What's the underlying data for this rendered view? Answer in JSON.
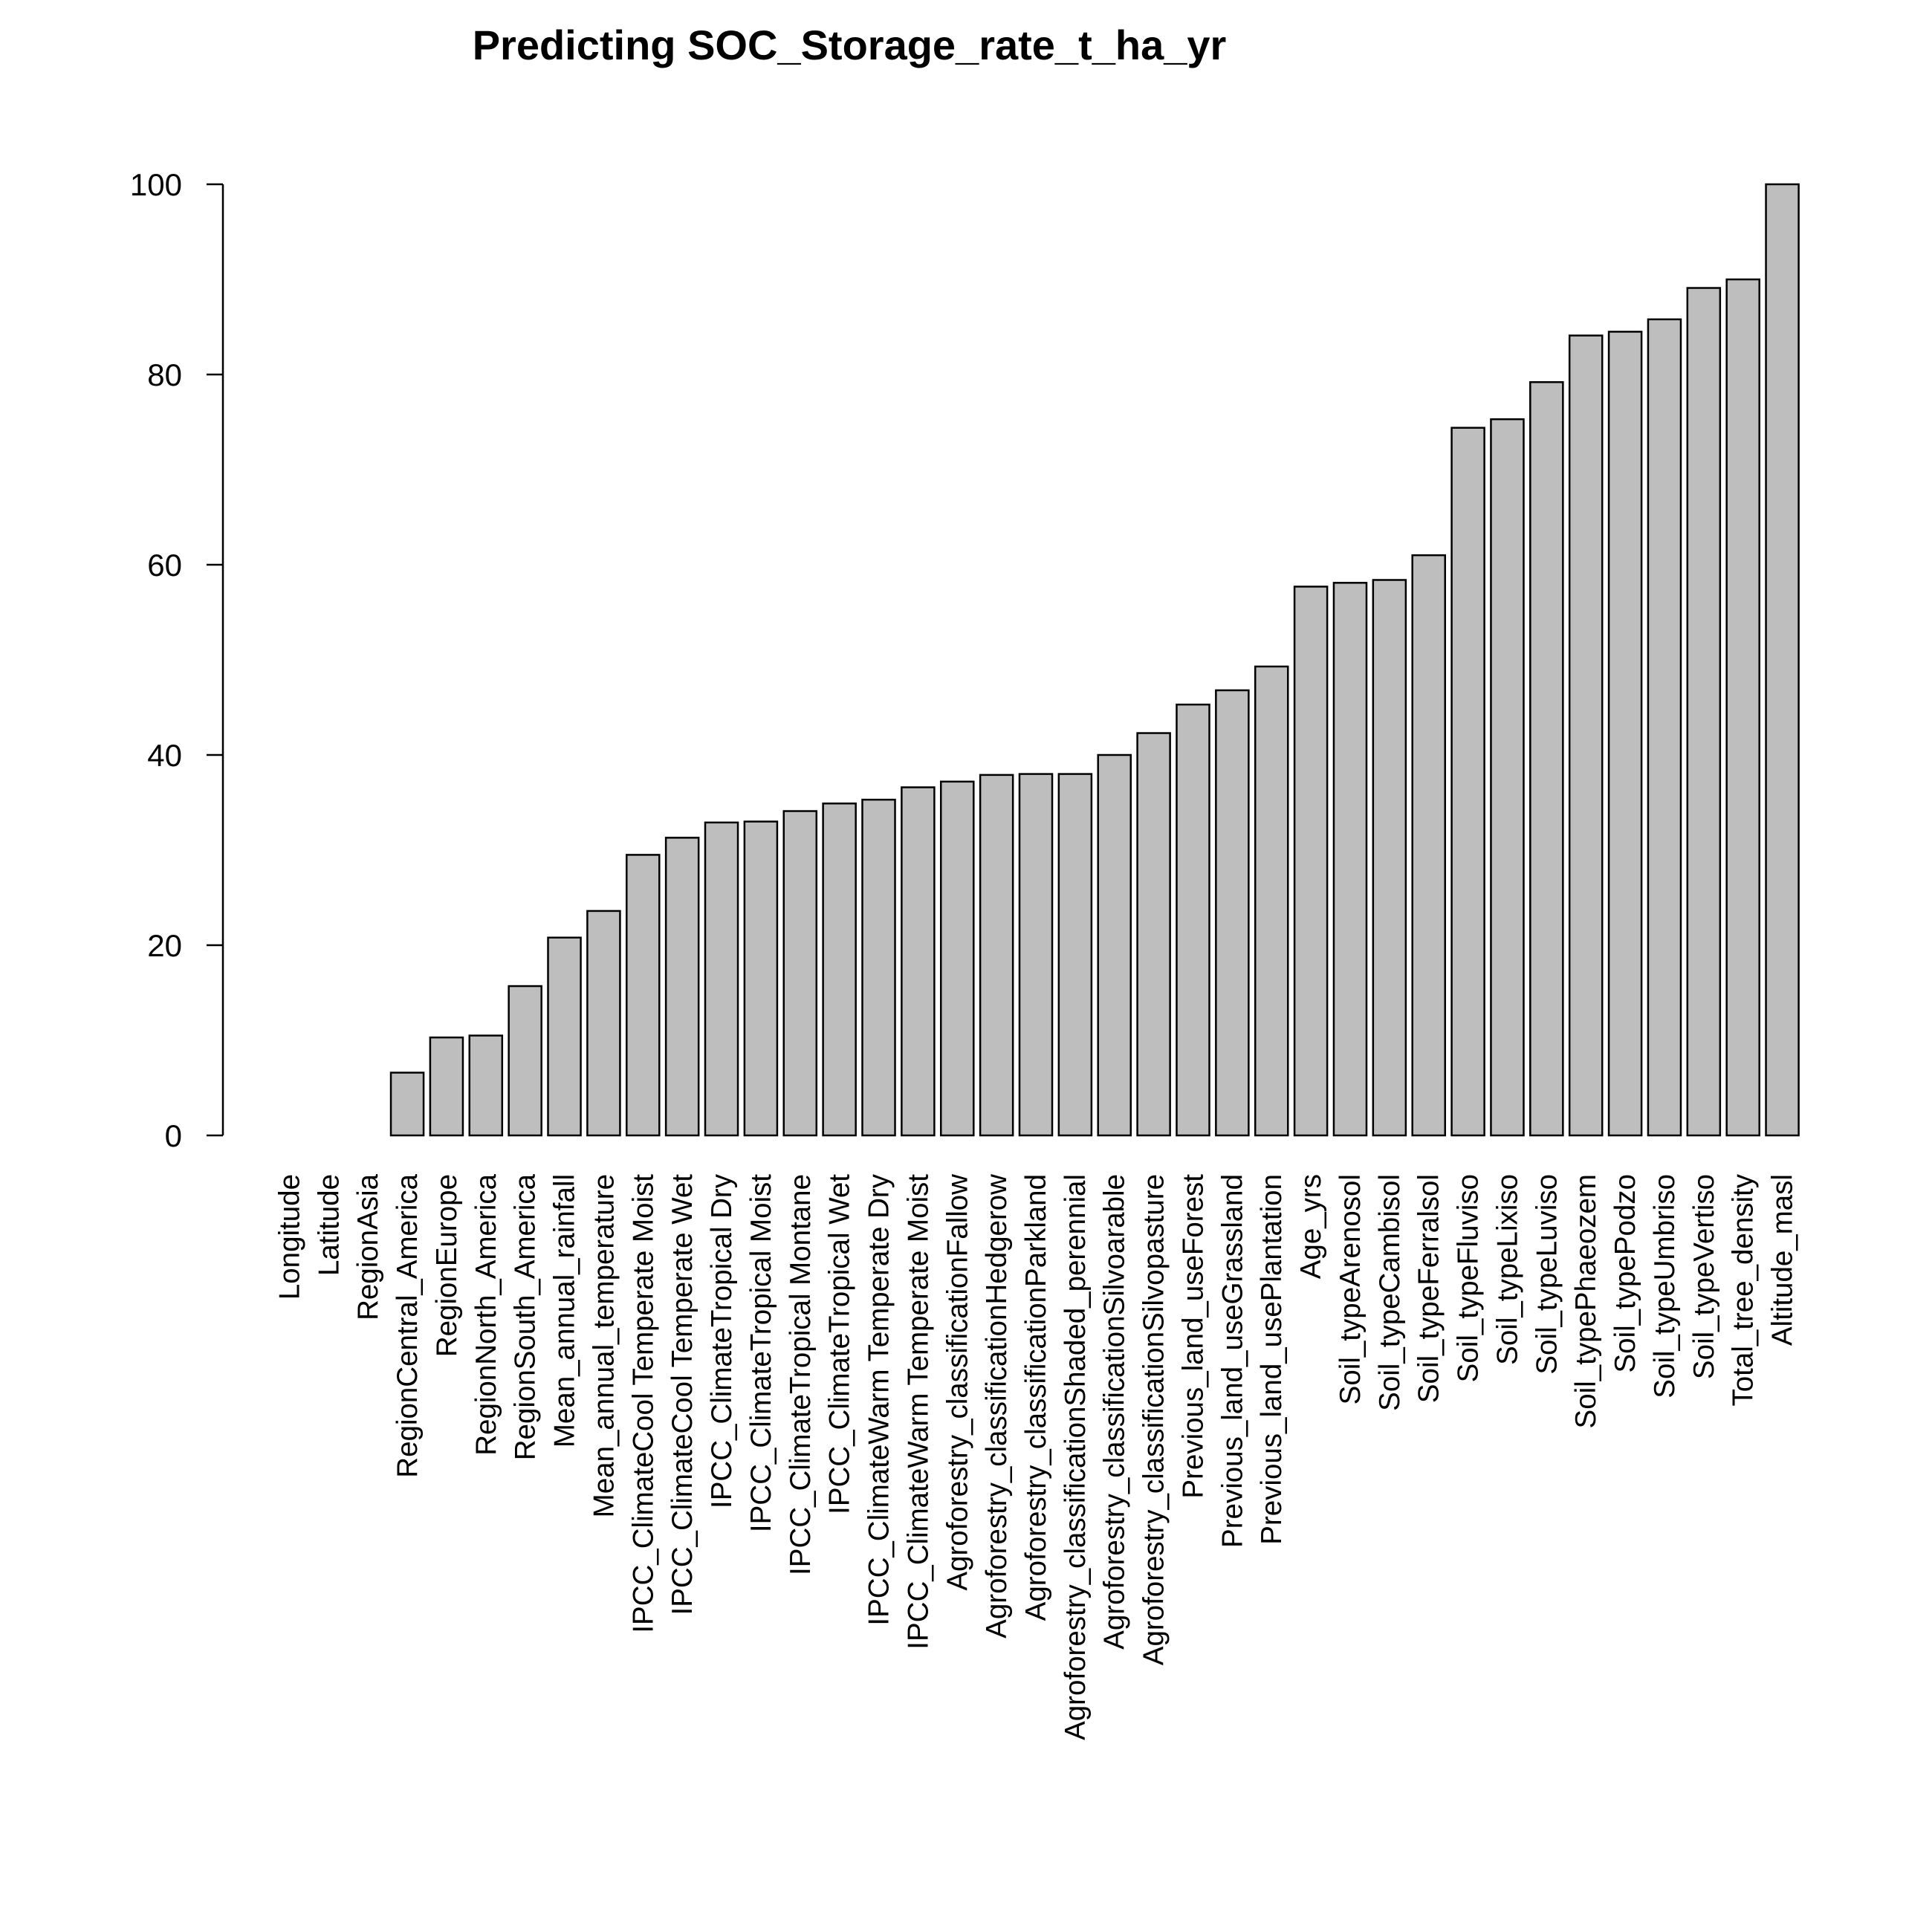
{
  "chart_data": {
    "type": "bar",
    "title": "Predicting SOC_Storage_rate_t_ha_yr",
    "xlabel": "",
    "ylabel": "",
    "ylim": [
      0,
      100
    ],
    "yticks": [
      0,
      20,
      40,
      60,
      80,
      100
    ],
    "grid": false,
    "bar_color": "#bebebe",
    "edge_color": "#000000",
    "categories": [
      "Longitude",
      "Latitude",
      "RegionAsia",
      "RegionCentral_America",
      "RegionEurope",
      "RegionNorth_America",
      "RegionSouth_America",
      "Mean_annual_rainfall",
      "Mean_annual_temperature",
      "IPCC_ClimateCool Temperate Moist",
      "IPCC_ClimateCool Temperate Wet",
      "IPCC_ClimateTropical Dry",
      "IPCC_ClimateTropical Moist",
      "IPCC_ClimateTropical Montane",
      "IPCC_ClimateTropical Wet",
      "IPCC_ClimateWarm Temperate Dry",
      "IPCC_ClimateWarm Temperate Moist",
      "Agroforestry_classificationFallow",
      "Agroforestry_classificationHedgerow",
      "Agroforestry_classificationParkland",
      "Agroforestry_classificationShaded_perennial",
      "Agroforestry_classificationSilvoarable",
      "Agroforestry_classificationSilvopasture",
      "Previous_land_useForest",
      "Previous_land_useGrassland",
      "Previous_land_usePlantation",
      "Age_yrs",
      "Soil_typeArenosol",
      "Soil_typeCambisol",
      "Soil_typeFerralsol",
      "Soil_typeFluviso",
      "Soil_typeLixiso",
      "Soil_typeLuviso",
      "Soil_typePhaeozem",
      "Soil_typePodzo",
      "Soil_typeUmbriso",
      "Soil_typeVertiso",
      "Total_tree_density",
      "Altitude_masl"
    ],
    "values": [
      0,
      0,
      0,
      6.6,
      10.3,
      10.5,
      15.7,
      20.8,
      23.6,
      29.5,
      31.3,
      32.9,
      33.0,
      34.1,
      34.9,
      35.3,
      36.6,
      37.2,
      37.9,
      38.0,
      38.0,
      40.0,
      42.3,
      45.3,
      46.8,
      49.3,
      57.7,
      58.1,
      58.4,
      61.0,
      74.4,
      75.3,
      79.2,
      84.1,
      84.5,
      85.8,
      89.1,
      90.0,
      100
    ]
  }
}
